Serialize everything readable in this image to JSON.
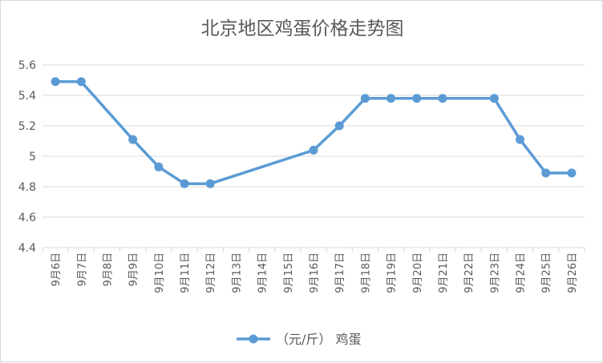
{
  "chart_data": {
    "type": "line",
    "title": "北京地区鸡蛋价格走势图",
    "xlabel": "",
    "ylabel": "",
    "categories": [
      "9月6日",
      "9月7日",
      "9月8日",
      "9月9日",
      "9月10日",
      "9月11日",
      "9月12日",
      "9月13日",
      "9月14日",
      "9月15日",
      "9月16日",
      "9月17日",
      "9月18日",
      "9月19日",
      "9月20日",
      "9月21日",
      "9月22日",
      "9月23日",
      "9月24日",
      "9月25日",
      "9月26日"
    ],
    "series": [
      {
        "name": "（元/斤） 鸡蛋",
        "points": [
          {
            "x": "9月6日",
            "y": 5.49
          },
          {
            "x": "9月7日",
            "y": 5.49
          },
          {
            "x": "9月9日",
            "y": 5.11
          },
          {
            "x": "9月10日",
            "y": 4.93
          },
          {
            "x": "9月11日",
            "y": 4.82
          },
          {
            "x": "9月12日",
            "y": 4.82
          },
          {
            "x": "9月16日",
            "y": 5.04
          },
          {
            "x": "9月17日",
            "y": 5.2
          },
          {
            "x": "9月18日",
            "y": 5.38
          },
          {
            "x": "9月19日",
            "y": 5.38
          },
          {
            "x": "9月20日",
            "y": 5.38
          },
          {
            "x": "9月21日",
            "y": 5.38
          },
          {
            "x": "9月23日",
            "y": 5.38
          },
          {
            "x": "9月24日",
            "y": 5.11
          },
          {
            "x": "9月25日",
            "y": 4.89
          },
          {
            "x": "9月26日",
            "y": 4.89
          }
        ]
      }
    ],
    "yticks": [
      "4.4",
      "4.6",
      "4.8",
      "5",
      "5.2",
      "5.4",
      "5.6"
    ],
    "ylim": [
      4.4,
      5.6
    ],
    "grid": true,
    "legend_position": "bottom",
    "colors": {
      "series": "#5b9bd5",
      "grid": "#d9d9d9",
      "axis_text": "#595959",
      "title": "#595959"
    }
  }
}
